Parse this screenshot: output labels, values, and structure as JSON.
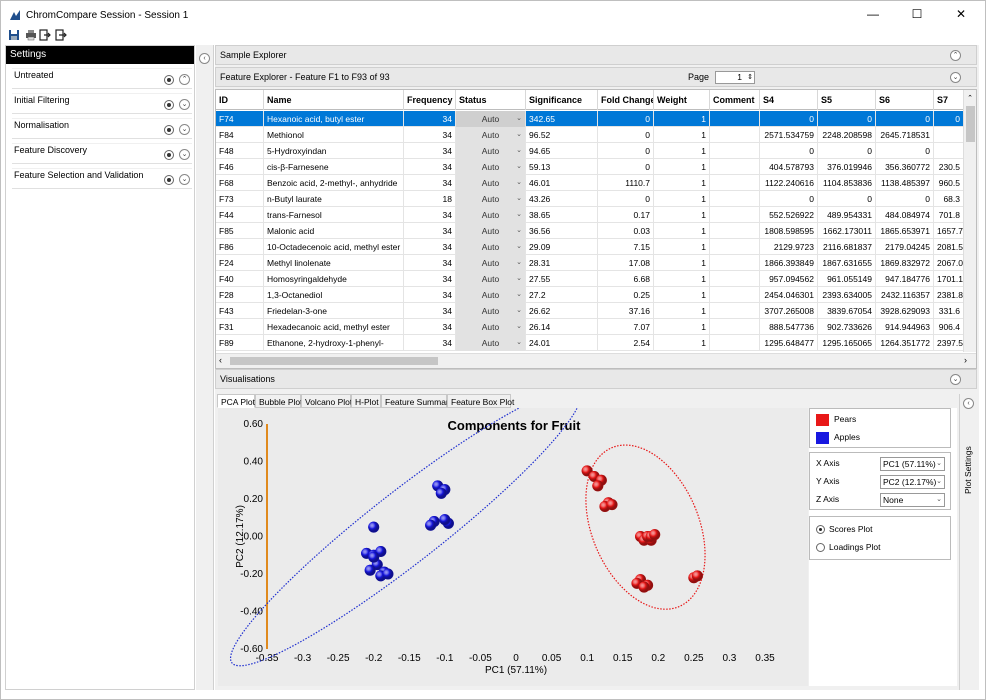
{
  "window": {
    "title": "ChromCompare Session - Session 1",
    "controls": {
      "minimize": "—",
      "maximize": "☐",
      "close": "✕"
    }
  },
  "toolbar": {
    "icons": [
      "save-icon",
      "print-icon",
      "export-icon",
      "exit-icon"
    ]
  },
  "settings": {
    "header": "Settings",
    "items": [
      {
        "label": "Untreated"
      },
      {
        "label": "Initial Filtering"
      },
      {
        "label": "Normalisation"
      },
      {
        "label": "Feature Discovery"
      },
      {
        "label": "Feature Selection and Validation"
      }
    ]
  },
  "sample_explorer": {
    "title": "Sample Explorer"
  },
  "feature_explorer": {
    "title": "Feature Explorer - Feature F1 to F93 of 93",
    "page_label": "Page",
    "page_value": "1",
    "columns": [
      "ID",
      "Name",
      "Frequency",
      "Status",
      "Significance",
      "Fold Change",
      "Weight",
      "Comment",
      "S4",
      "S5",
      "S6",
      "S7"
    ],
    "rows": [
      [
        "F74",
        "Hexanoic acid, butyl ester",
        "34",
        "Auto",
        "342.65",
        "0",
        "1",
        "",
        "0",
        "0",
        "0",
        "0"
      ],
      [
        "F84",
        "Methionol",
        "34",
        "Auto",
        "96.52",
        "0",
        "1",
        "",
        "2571.534759",
        "2248.208598",
        "2645.718531",
        ""
      ],
      [
        "F48",
        "5-Hydroxyindan",
        "34",
        "Auto",
        "94.65",
        "0",
        "1",
        "",
        "0",
        "0",
        "0",
        ""
      ],
      [
        "F46",
        "cis-β-Farnesene",
        "34",
        "Auto",
        "59.13",
        "0",
        "1",
        "",
        "404.578793",
        "376.019946",
        "356.360772",
        "230.5"
      ],
      [
        "F68",
        "Benzoic acid, 2-methyl-, anhydride",
        "34",
        "Auto",
        "46.01",
        "1110.7",
        "1",
        "",
        "1122.240616",
        "1104.853836",
        "1138.485397",
        "960.5"
      ],
      [
        "F73",
        "n-Butyl laurate",
        "18",
        "Auto",
        "43.26",
        "0",
        "1",
        "",
        "0",
        "0",
        "0",
        "68.3"
      ],
      [
        "F44",
        "trans-Farnesol",
        "34",
        "Auto",
        "38.65",
        "0.17",
        "1",
        "",
        "552.526922",
        "489.954331",
        "484.084974",
        "701.8"
      ],
      [
        "F85",
        "Malonic acid",
        "34",
        "Auto",
        "36.56",
        "0.03",
        "1",
        "",
        "1808.598595",
        "1662.173011",
        "1865.653971",
        "1657.7"
      ],
      [
        "F86",
        "10-Octadecenoic acid, methyl ester",
        "34",
        "Auto",
        "29.09",
        "7.15",
        "1",
        "",
        "2129.9723",
        "2116.681837",
        "2179.04245",
        "2081.5"
      ],
      [
        "F24",
        "Methyl linolenate",
        "34",
        "Auto",
        "28.31",
        "17.08",
        "1",
        "",
        "1866.393849",
        "1867.631655",
        "1869.832972",
        "2067.0"
      ],
      [
        "F40",
        "Homosyringaldehyde",
        "34",
        "Auto",
        "27.55",
        "6.68",
        "1",
        "",
        "957.094562",
        "961.055149",
        "947.184776",
        "1701.1"
      ],
      [
        "F28",
        "1,3-Octanediol",
        "34",
        "Auto",
        "27.2",
        "0.25",
        "1",
        "",
        "2454.046301",
        "2393.634005",
        "2432.116357",
        "2381.8"
      ],
      [
        "F43",
        "Friedelan-3-one",
        "34",
        "Auto",
        "26.62",
        "37.16",
        "1",
        "",
        "3707.265008",
        "3839.67054",
        "3928.629093",
        "331.6"
      ],
      [
        "F31",
        "Hexadecanoic acid, methyl ester",
        "34",
        "Auto",
        "26.14",
        "7.07",
        "1",
        "",
        "888.547736",
        "902.733626",
        "914.944963",
        "906.4"
      ],
      [
        "F89",
        "Ethanone, 2-hydroxy-1-phenyl-",
        "34",
        "Auto",
        "24.01",
        "2.54",
        "1",
        "",
        "1295.648477",
        "1295.165065",
        "1264.351772",
        "2397.5"
      ]
    ]
  },
  "visualisations": {
    "title": "Visualisations",
    "tabs": [
      "PCA Plot",
      "Bubble Plot",
      "Volcano Plot",
      "H-Plot",
      "Feature Summary",
      "Feature Box Plot"
    ],
    "active_tab": "PCA Plot",
    "side_label": "Plot Settings",
    "legend": [
      {
        "name": "Pears",
        "color": "#e81818"
      },
      {
        "name": "Apples",
        "color": "#1818e0"
      }
    ],
    "axes": {
      "x_label": "X Axis",
      "x_value": "PC1 (57.11%)",
      "y_label": "Y Axis",
      "y_value": "PC2 (12.17%)",
      "z_label": "Z Axis",
      "z_value": "None"
    },
    "modes": {
      "scores": "Scores Plot",
      "loadings": "Loadings Plot",
      "selected": "scores"
    }
  },
  "chart_data": {
    "type": "scatter",
    "title": "Components for Fruit",
    "xlabel": "PC1 (57.11%)",
    "ylabel": "PC2 (12.17%)",
    "xlim": [
      -0.35,
      0.35
    ],
    "ylim": [
      -0.6,
      0.6
    ],
    "xticks": [
      "-0.35",
      "-0.3",
      "-0.25",
      "-0.2",
      "-0.15",
      "-0.1",
      "-0.05",
      "0",
      "0.05",
      "0.1",
      "0.15",
      "0.2",
      "0.25",
      "0.3",
      "0.35"
    ],
    "yticks": [
      "0.60",
      "0.40",
      "0.20",
      "0.00",
      "-0.20",
      "-0.40",
      "-0.60"
    ],
    "series": [
      {
        "name": "Pears",
        "color": "#e81818",
        "x": [
          0.1,
          0.11,
          0.12,
          0.115,
          0.13,
          0.125,
          0.135,
          0.175,
          0.18,
          0.19,
          0.185,
          0.175,
          0.17,
          0.185,
          0.19,
          0.195,
          0.18,
          0.25,
          0.255
        ],
        "y": [
          0.35,
          0.32,
          0.3,
          0.27,
          0.18,
          0.16,
          0.17,
          0.0,
          -0.02,
          -0.02,
          0.0,
          -0.23,
          -0.25,
          -0.26,
          -0.0,
          0.01,
          -0.27,
          -0.22,
          -0.21
        ]
      },
      {
        "name": "Apples",
        "color": "#1818e0",
        "x": [
          -0.11,
          -0.1,
          -0.105,
          -0.115,
          -0.095,
          -0.12,
          -0.1,
          -0.2,
          -0.21,
          -0.2,
          -0.19,
          -0.195,
          -0.205,
          -0.185,
          -0.19,
          -0.18,
          -0.2
        ],
        "y": [
          0.27,
          0.25,
          0.23,
          0.08,
          0.07,
          0.06,
          0.09,
          0.05,
          -0.09,
          -0.1,
          -0.08,
          -0.15,
          -0.18,
          -0.19,
          -0.21,
          -0.2,
          -0.11
        ]
      }
    ],
    "ellipses": [
      {
        "series": "Pears",
        "color": "#e81818",
        "cx": 0.182,
        "cy": 0.05,
        "rx": 0.075,
        "ry": 0.46,
        "angle": -23
      },
      {
        "series": "Apples",
        "color": "#2030d0",
        "cx": -0.155,
        "cy": 0.05,
        "rx": 0.31,
        "ry": 0.19,
        "angle": -38
      }
    ]
  }
}
